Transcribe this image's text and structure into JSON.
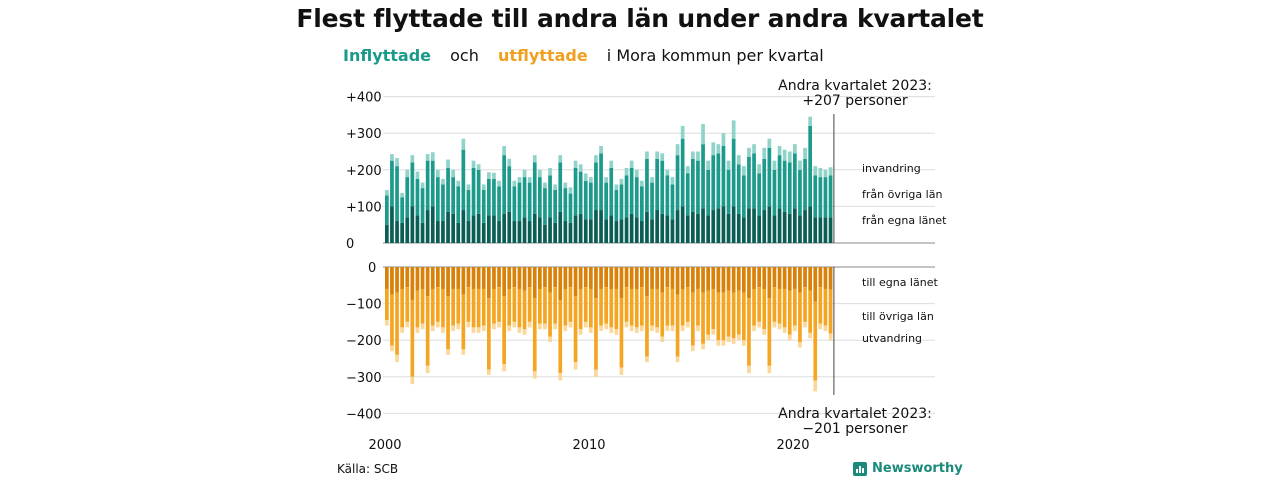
{
  "title": "Flest flyttade till andra län under andra kvartalet",
  "subtitle": {
    "in_label": "Inflyttade",
    "and": "och",
    "out_label": "utflyttade",
    "rest": "i Mora kommun per kvartal"
  },
  "source": "Källa: SCB",
  "brand": "Newsworthy",
  "colors": {
    "in_own": "#0b5e55",
    "in_other": "#1c9a8b",
    "in_immig": "#8fd3c9",
    "out_own": "#d9820a",
    "out_other": "#f4a623",
    "out_emig": "#fbd79a"
  },
  "chart_data": {
    "type": "bar",
    "stacked": true,
    "x_start": "2000 Q1",
    "x_ticks": [
      "2000",
      "2010",
      "2020"
    ],
    "y_ticks_top": [
      "+400",
      "+300",
      "+200",
      "+100",
      "0"
    ],
    "y_ticks_bottom": [
      "0",
      "−100",
      "−200",
      "−300",
      "−400"
    ],
    "ylim_top": [
      0,
      400
    ],
    "ylim_bottom": [
      -400,
      0
    ],
    "grid": true,
    "series_in": [
      "från egna länet",
      "från övriga län",
      "invandring"
    ],
    "series_out": [
      "till egna länet",
      "till övriga län",
      "utvandring"
    ],
    "series_in_labels": [
      "invandring",
      "från övriga län",
      "från egna länet"
    ],
    "series_out_labels": [
      "till egna länet",
      "till övriga län",
      "utvandring"
    ],
    "annotation_top": [
      "Andra kvartalet 2023:",
      "+207 personer"
    ],
    "annotation_bottom": [
      "Andra kvartalet 2023:",
      "−201 personer"
    ],
    "inflow_total": [
      145,
      243,
      232,
      137,
      200,
      240,
      195,
      165,
      243,
      248,
      200,
      175,
      228,
      200,
      170,
      285,
      160,
      225,
      215,
      160,
      193,
      192,
      170,
      265,
      230,
      170,
      180,
      200,
      180,
      240,
      200,
      165,
      205,
      160,
      240,
      165,
      152,
      225,
      215,
      190,
      180,
      240,
      265,
      180,
      225,
      160,
      175,
      205,
      225,
      200,
      170,
      250,
      180,
      250,
      245,
      200,
      180,
      270,
      320,
      210,
      250,
      250,
      325,
      225,
      275,
      270,
      300,
      225,
      335,
      240,
      210,
      260,
      270,
      215,
      260,
      285,
      225,
      265,
      255,
      250,
      270,
      225,
      260,
      345,
      210,
      205,
      200,
      207
    ],
    "inflow_own": [
      50,
      100,
      60,
      55,
      70,
      100,
      75,
      55,
      90,
      100,
      60,
      60,
      85,
      80,
      55,
      90,
      60,
      75,
      80,
      55,
      75,
      75,
      60,
      80,
      85,
      60,
      60,
      70,
      60,
      80,
      70,
      50,
      70,
      55,
      85,
      60,
      55,
      75,
      80,
      65,
      65,
      90,
      90,
      65,
      75,
      60,
      65,
      70,
      80,
      70,
      60,
      85,
      65,
      90,
      80,
      75,
      65,
      90,
      100,
      75,
      85,
      80,
      95,
      75,
      90,
      95,
      100,
      80,
      100,
      80,
      70,
      95,
      95,
      75,
      90,
      100,
      75,
      95,
      85,
      80,
      95,
      75,
      90,
      100,
      70,
      70,
      70,
      70
    ],
    "inflow_other": [
      80,
      125,
      150,
      70,
      110,
      120,
      100,
      95,
      135,
      125,
      120,
      100,
      120,
      100,
      100,
      165,
      85,
      130,
      120,
      90,
      100,
      100,
      95,
      160,
      125,
      95,
      105,
      110,
      105,
      140,
      110,
      100,
      115,
      90,
      135,
      90,
      80,
      130,
      115,
      105,
      100,
      130,
      155,
      100,
      130,
      85,
      95,
      115,
      125,
      110,
      95,
      145,
      100,
      140,
      145,
      110,
      95,
      150,
      185,
      115,
      145,
      145,
      175,
      125,
      150,
      150,
      165,
      120,
      185,
      135,
      115,
      140,
      150,
      115,
      140,
      160,
      125,
      145,
      140,
      140,
      150,
      125,
      140,
      220,
      115,
      110,
      110,
      115
    ],
    "outflow_total": [
      160,
      230,
      260,
      180,
      165,
      320,
      180,
      170,
      290,
      175,
      165,
      180,
      240,
      175,
      170,
      240,
      165,
      180,
      180,
      175,
      295,
      170,
      165,
      285,
      175,
      165,
      180,
      185,
      165,
      305,
      170,
      170,
      205,
      170,
      310,
      175,
      165,
      280,
      185,
      165,
      180,
      300,
      175,
      170,
      180,
      185,
      295,
      165,
      175,
      180,
      175,
      260,
      175,
      180,
      205,
      175,
      175,
      260,
      175,
      165,
      230,
      175,
      225,
      200,
      185,
      215,
      215,
      205,
      210,
      200,
      215,
      290,
      175,
      165,
      185,
      290,
      165,
      170,
      180,
      200,
      175,
      220,
      165,
      195,
      340,
      170,
      175,
      201
    ],
    "outflow_own": [
      60,
      75,
      70,
      60,
      55,
      90,
      65,
      60,
      80,
      60,
      55,
      60,
      80,
      60,
      60,
      75,
      55,
      60,
      60,
      60,
      85,
      60,
      55,
      80,
      60,
      55,
      60,
      65,
      55,
      85,
      60,
      55,
      70,
      55,
      90,
      60,
      55,
      80,
      60,
      55,
      60,
      85,
      60,
      55,
      60,
      60,
      85,
      55,
      60,
      60,
      55,
      80,
      60,
      60,
      70,
      55,
      60,
      75,
      60,
      55,
      70,
      60,
      70,
      65,
      60,
      70,
      70,
      65,
      70,
      65,
      70,
      85,
      60,
      55,
      60,
      85,
      55,
      60,
      60,
      65,
      60,
      70,
      55,
      65,
      95,
      55,
      60,
      62
    ],
    "outflow_other": [
      85,
      140,
      170,
      105,
      95,
      210,
      100,
      95,
      190,
      100,
      95,
      105,
      145,
      100,
      95,
      150,
      95,
      105,
      105,
      100,
      195,
      95,
      95,
      185,
      100,
      95,
      105,
      105,
      95,
      200,
      95,
      100,
      120,
      100,
      200,
      100,
      95,
      180,
      110,
      95,
      105,
      195,
      100,
      100,
      105,
      110,
      190,
      95,
      100,
      105,
      105,
      165,
      100,
      105,
      120,
      105,
      100,
      170,
      100,
      95,
      145,
      100,
      140,
      120,
      110,
      130,
      130,
      125,
      125,
      120,
      130,
      185,
      100,
      95,
      110,
      185,
      95,
      95,
      105,
      120,
      100,
      135,
      95,
      115,
      215,
      100,
      100,
      120
    ]
  }
}
